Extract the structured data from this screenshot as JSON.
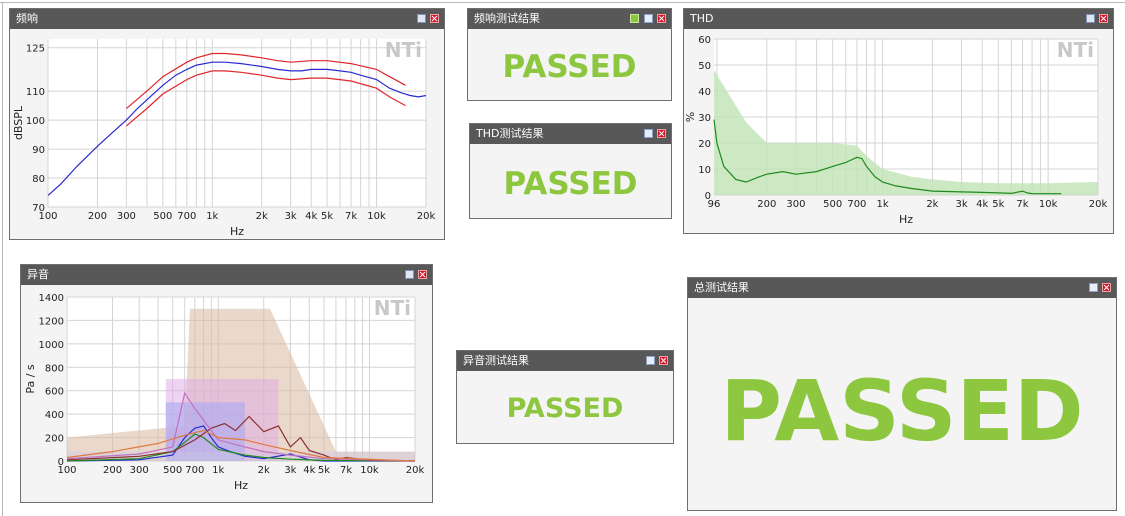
{
  "panels": {
    "freq_response": {
      "title": "频响"
    },
    "freq_result": {
      "title": "频响测试结果",
      "result": "PASSED"
    },
    "thd": {
      "title": "THD"
    },
    "thd_result": {
      "title": "THD测试结果",
      "result": "PASSED"
    },
    "noise": {
      "title": "异音"
    },
    "noise_result": {
      "title": "异音测试结果",
      "result": "PASSED"
    },
    "total_result": {
      "title": "总测试结果",
      "result": "PASSED"
    }
  },
  "watermark": "NTi",
  "colors": {
    "pass": "#8dc63f",
    "titlebar": "#585858",
    "limit": "#e0242a",
    "measured": "#2a2ad0",
    "thd": "#1f8a1f",
    "thd_fill": "#bfe3b5"
  },
  "chart_data": [
    {
      "id": "freq_response",
      "type": "line",
      "title": "",
      "xlabel": "Hz",
      "ylabel": "dBSPL",
      "xscale": "log",
      "xlim": [
        100,
        20000
      ],
      "ylim": [
        70,
        128
      ],
      "x_ticks": [
        "100",
        "200",
        "300",
        "500",
        "700",
        "1k",
        "2k",
        "3k",
        "4k",
        "5k",
        "7k",
        "10k",
        "20k"
      ],
      "y_ticks": [
        "70",
        "80",
        "90",
        "100",
        "110",
        "125"
      ],
      "grid": true,
      "series": [
        {
          "role": "measured",
          "color": "#2a2ad0",
          "x": [
            100,
            120,
            150,
            200,
            250,
            300,
            350,
            400,
            500,
            600,
            700,
            800,
            1000,
            1200,
            1500,
            2000,
            2500,
            3000,
            3500,
            4000,
            5000,
            6000,
            7000,
            8000,
            10000,
            12000,
            14000,
            16000,
            18000,
            20000
          ],
          "y": [
            74,
            78,
            84,
            91,
            96,
            100,
            104,
            107,
            112,
            115.5,
            117.5,
            119,
            120,
            120,
            119.5,
            118.5,
            117.5,
            117,
            117,
            117.5,
            117.5,
            117,
            116.5,
            115.5,
            114,
            111,
            109.5,
            108.5,
            108,
            108.5
          ]
        },
        {
          "role": "upper_limit",
          "color": "#e0242a",
          "x": [
            300,
            400,
            500,
            700,
            800,
            1000,
            1200,
            1500,
            2000,
            2500,
            3000,
            4000,
            5000,
            7000,
            10000,
            12000,
            15000
          ],
          "y": [
            104,
            110,
            115,
            120,
            121.5,
            123,
            123,
            122.5,
            121.5,
            120.5,
            120,
            120.5,
            120.5,
            119.5,
            117.5,
            115,
            112
          ]
        },
        {
          "role": "lower_limit",
          "color": "#e0242a",
          "x": [
            300,
            400,
            500,
            700,
            800,
            1000,
            1200,
            1500,
            2000,
            2500,
            3000,
            4000,
            5000,
            7000,
            10000,
            12000,
            15000
          ],
          "y": [
            98,
            104,
            109,
            114,
            115.5,
            117,
            117,
            116.5,
            115.5,
            114.5,
            114,
            114.5,
            114.5,
            113.5,
            111,
            108,
            105
          ]
        }
      ]
    },
    {
      "id": "thd",
      "type": "area",
      "title": "",
      "xlabel": "Hz",
      "ylabel": "%",
      "xscale": "log",
      "xlim": [
        96,
        20000
      ],
      "ylim": [
        0,
        60
      ],
      "x_ticks": [
        "96",
        "200",
        "300",
        "500",
        "700",
        "1k",
        "2k",
        "3k",
        "4k",
        "5k",
        "7k",
        "10k",
        "20k"
      ],
      "y_ticks": [
        "0",
        "10",
        "20",
        "30",
        "40",
        "50",
        "60"
      ],
      "grid": true,
      "limit_area": {
        "color": "#bfe3b5",
        "x": [
          96,
          150,
          200,
          300,
          500,
          700,
          800,
          1000,
          1500,
          2000,
          3000,
          5000,
          7000,
          10000,
          20000
        ],
        "y": [
          48,
          28,
          20,
          20,
          20,
          19,
          15,
          10,
          7,
          6,
          5,
          4.5,
          4.5,
          4.5,
          5
        ]
      },
      "series": [
        {
          "role": "measured",
          "color": "#1f8a1f",
          "x": [
            96,
            100,
            110,
            130,
            150,
            180,
            200,
            250,
            300,
            400,
            500,
            600,
            700,
            750,
            800,
            900,
            1000,
            1200,
            1500,
            2000,
            3000,
            4000,
            5000,
            6000,
            7000,
            7500,
            8000,
            10000,
            12000
          ],
          "y": [
            29,
            20,
            11,
            6,
            5,
            7,
            8,
            9,
            8,
            9,
            11,
            12.5,
            14.5,
            14,
            11,
            7,
            5,
            3.5,
            2.5,
            1.5,
            1.2,
            1,
            0.8,
            0.6,
            1.5,
            0.8,
            0.5,
            0.5,
            0.5
          ]
        }
      ]
    },
    {
      "id": "noise",
      "type": "line",
      "title": "",
      "xlabel": "Hz",
      "ylabel": "Pa / s",
      "xscale": "log",
      "xlim": [
        100,
        20000
      ],
      "ylim": [
        0,
        1400
      ],
      "x_ticks": [
        "100",
        "200",
        "300",
        "500",
        "700",
        "1k",
        "2k",
        "3k",
        "4k",
        "5k",
        "7k",
        "10k",
        "20k"
      ],
      "y_ticks": [
        "0",
        "200",
        "400",
        "600",
        "800",
        "1000",
        "1200",
        "1400"
      ],
      "grid": true,
      "bands": [
        {
          "x": [
            100,
            600,
            650,
            2200,
            6000,
            20000
          ],
          "y": [
            200,
            300,
            1300,
            1300,
            80,
            80
          ],
          "color": "#d9b9a0",
          "opacity": 0.55
        },
        {
          "x": [
            450,
            450,
            2500,
            2500
          ],
          "y": [
            0,
            700,
            700,
            0
          ],
          "color": "#e0a8e8",
          "opacity": 0.5
        },
        {
          "x": [
            450,
            450,
            1500,
            1500
          ],
          "y": [
            0,
            500,
            500,
            0
          ],
          "color": "#a8a8f0",
          "opacity": 0.6
        },
        {
          "x": [
            100,
            20000
          ],
          "y": [
            80,
            80
          ],
          "color": "#c8c8e8",
          "opacity": 0.4
        }
      ],
      "series": [
        {
          "color": "#2a2ad0",
          "x": [
            100,
            300,
            500,
            600,
            700,
            800,
            900,
            1000,
            1200,
            1500,
            2000,
            3000,
            4000,
            5000,
            20000
          ],
          "y": [
            0,
            10,
            50,
            200,
            280,
            300,
            200,
            120,
            80,
            40,
            20,
            60,
            10,
            0,
            0
          ]
        },
        {
          "color": "#1f8a1f",
          "x": [
            100,
            300,
            500,
            600,
            700,
            800,
            1000,
            1500,
            2000,
            3000,
            5000,
            20000
          ],
          "y": [
            0,
            20,
            80,
            160,
            230,
            200,
            100,
            50,
            30,
            15,
            5,
            0
          ]
        },
        {
          "color": "#8a3030",
          "x": [
            100,
            300,
            500,
            700,
            900,
            1100,
            1300,
            1600,
            2000,
            2500,
            3000,
            3500,
            4000,
            5000,
            6000,
            7000,
            10000,
            20000
          ],
          "y": [
            10,
            40,
            80,
            180,
            280,
            320,
            260,
            380,
            250,
            300,
            120,
            200,
            90,
            50,
            10,
            30,
            5,
            0
          ]
        },
        {
          "color": "#c070c0",
          "x": [
            100,
            300,
            500,
            600,
            700,
            900,
            1000,
            1500,
            2000,
            3000,
            5000,
            20000
          ],
          "y": [
            20,
            60,
            120,
            580,
            450,
            260,
            180,
            120,
            80,
            50,
            20,
            0
          ]
        },
        {
          "color": "#e07a40",
          "x": [
            100,
            200,
            400,
            600,
            800,
            1000,
            1500,
            2000,
            3000,
            5000,
            20000
          ],
          "y": [
            30,
            80,
            150,
            220,
            260,
            200,
            180,
            140,
            90,
            30,
            0
          ]
        }
      ]
    }
  ]
}
